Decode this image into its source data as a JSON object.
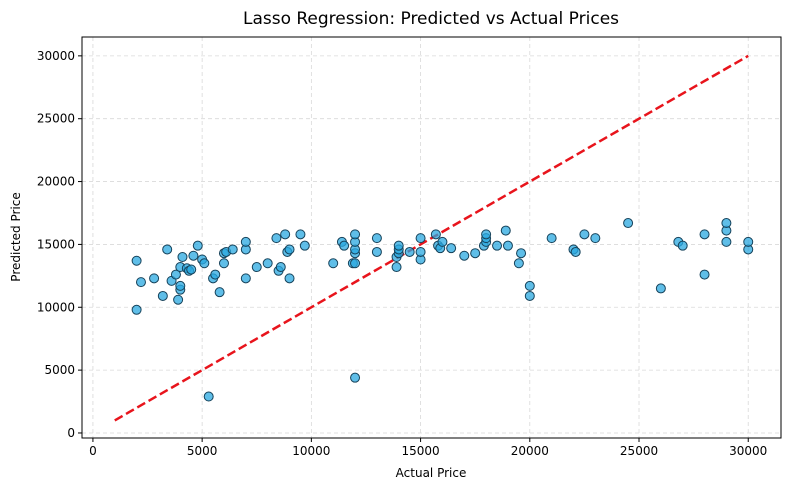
{
  "chart_data": {
    "type": "scatter",
    "title": "Lasso Regression: Predicted vs Actual Prices",
    "xlabel": "Actual Price",
    "ylabel": "Predicted Price",
    "xlim": [
      -500,
      31500
    ],
    "ylim": [
      -400,
      31500
    ],
    "xticks": [
      0,
      5000,
      10000,
      15000,
      20000,
      25000,
      30000
    ],
    "yticks": [
      0,
      5000,
      10000,
      15000,
      20000,
      25000,
      30000
    ],
    "grid": true,
    "colors": {
      "point_fill": "#29a8e0",
      "point_edge": "#16425a",
      "reference_line": "#e8141c",
      "grid": "#d9d9d9"
    },
    "reference_line": {
      "x": [
        1000,
        30000
      ],
      "y": [
        1000,
        30000
      ],
      "style": "dashed"
    },
    "points": [
      {
        "x": 2000,
        "y": 9800
      },
      {
        "x": 2000,
        "y": 13700
      },
      {
        "x": 2200,
        "y": 12000
      },
      {
        "x": 2800,
        "y": 12300
      },
      {
        "x": 3200,
        "y": 10900
      },
      {
        "x": 3400,
        "y": 14600
      },
      {
        "x": 3600,
        "y": 12100
      },
      {
        "x": 3800,
        "y": 12600
      },
      {
        "x": 3900,
        "y": 10600
      },
      {
        "x": 4000,
        "y": 11400
      },
      {
        "x": 4000,
        "y": 11700
      },
      {
        "x": 4000,
        "y": 13200
      },
      {
        "x": 4100,
        "y": 14000
      },
      {
        "x": 4300,
        "y": 13100
      },
      {
        "x": 4400,
        "y": 12900
      },
      {
        "x": 4500,
        "y": 13000
      },
      {
        "x": 4600,
        "y": 14100
      },
      {
        "x": 4800,
        "y": 14900
      },
      {
        "x": 5000,
        "y": 13800
      },
      {
        "x": 5100,
        "y": 13500
      },
      {
        "x": 5300,
        "y": 2900
      },
      {
        "x": 5500,
        "y": 12300
      },
      {
        "x": 5600,
        "y": 12600
      },
      {
        "x": 5800,
        "y": 11200
      },
      {
        "x": 6000,
        "y": 13500
      },
      {
        "x": 6000,
        "y": 14300
      },
      {
        "x": 6100,
        "y": 14400
      },
      {
        "x": 6400,
        "y": 14600
      },
      {
        "x": 7000,
        "y": 12300
      },
      {
        "x": 7000,
        "y": 14600
      },
      {
        "x": 7000,
        "y": 15200
      },
      {
        "x": 7500,
        "y": 13200
      },
      {
        "x": 8000,
        "y": 13500
      },
      {
        "x": 8400,
        "y": 15500
      },
      {
        "x": 8500,
        "y": 12900
      },
      {
        "x": 8600,
        "y": 13200
      },
      {
        "x": 8800,
        "y": 15800
      },
      {
        "x": 8900,
        "y": 14400
      },
      {
        "x": 9000,
        "y": 12300
      },
      {
        "x": 9000,
        "y": 14600
      },
      {
        "x": 9500,
        "y": 15800
      },
      {
        "x": 9700,
        "y": 14900
      },
      {
        "x": 11000,
        "y": 13500
      },
      {
        "x": 11400,
        "y": 15200
      },
      {
        "x": 11500,
        "y": 14900
      },
      {
        "x": 11900,
        "y": 13500
      },
      {
        "x": 12000,
        "y": 13500
      },
      {
        "x": 12000,
        "y": 14300
      },
      {
        "x": 12000,
        "y": 14600
      },
      {
        "x": 12000,
        "y": 15200
      },
      {
        "x": 12000,
        "y": 15800
      },
      {
        "x": 12000,
        "y": 4400
      },
      {
        "x": 13000,
        "y": 14400
      },
      {
        "x": 13000,
        "y": 15500
      },
      {
        "x": 13900,
        "y": 13200
      },
      {
        "x": 13900,
        "y": 14000
      },
      {
        "x": 14000,
        "y": 14300
      },
      {
        "x": 14000,
        "y": 14600
      },
      {
        "x": 14000,
        "y": 14900
      },
      {
        "x": 14500,
        "y": 14400
      },
      {
        "x": 15000,
        "y": 13800
      },
      {
        "x": 15000,
        "y": 14400
      },
      {
        "x": 15000,
        "y": 15500
      },
      {
        "x": 15700,
        "y": 15800
      },
      {
        "x": 15800,
        "y": 14900
      },
      {
        "x": 15900,
        "y": 14700
      },
      {
        "x": 16000,
        "y": 15200
      },
      {
        "x": 16400,
        "y": 14700
      },
      {
        "x": 17000,
        "y": 14100
      },
      {
        "x": 17500,
        "y": 14300
      },
      {
        "x": 17900,
        "y": 14900
      },
      {
        "x": 18000,
        "y": 15200
      },
      {
        "x": 18000,
        "y": 15500
      },
      {
        "x": 18000,
        "y": 15800
      },
      {
        "x": 18500,
        "y": 14900
      },
      {
        "x": 18900,
        "y": 16100
      },
      {
        "x": 19000,
        "y": 14900
      },
      {
        "x": 19500,
        "y": 13500
      },
      {
        "x": 19600,
        "y": 14300
      },
      {
        "x": 20000,
        "y": 11700
      },
      {
        "x": 20000,
        "y": 10900
      },
      {
        "x": 21000,
        "y": 15500
      },
      {
        "x": 22000,
        "y": 14600
      },
      {
        "x": 22100,
        "y": 14400
      },
      {
        "x": 22500,
        "y": 15800
      },
      {
        "x": 23000,
        "y": 15500
      },
      {
        "x": 24500,
        "y": 16700
      },
      {
        "x": 26000,
        "y": 11500
      },
      {
        "x": 26800,
        "y": 15200
      },
      {
        "x": 27000,
        "y": 14900
      },
      {
        "x": 28000,
        "y": 12600
      },
      {
        "x": 28000,
        "y": 15800
      },
      {
        "x": 29000,
        "y": 15200
      },
      {
        "x": 29000,
        "y": 16100
      },
      {
        "x": 29000,
        "y": 16700
      },
      {
        "x": 30000,
        "y": 14600
      },
      {
        "x": 30000,
        "y": 15200
      }
    ]
  }
}
